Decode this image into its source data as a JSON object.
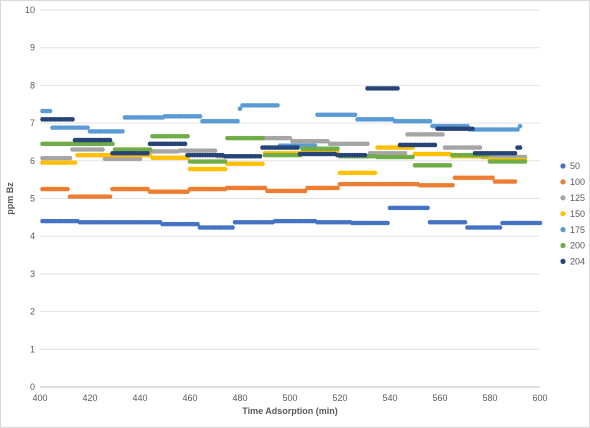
{
  "chart_data": {
    "type": "scatter",
    "title": "",
    "xlabel": "Time Adsorption (min)",
    "ylabel": "ppm Bz",
    "xlim": [
      400,
      600
    ],
    "ylim": [
      0,
      10
    ],
    "x_ticks": [
      400,
      420,
      440,
      460,
      480,
      500,
      520,
      540,
      560,
      580,
      600
    ],
    "y_ticks": [
      0,
      1,
      2,
      3,
      4,
      5,
      6,
      7,
      8,
      9,
      10
    ],
    "grid": "horizontal",
    "legend_position": "right",
    "series": [
      {
        "name": "50",
        "color": "#4472c4",
        "segments": [
          {
            "x0": 401,
            "x1": 415,
            "y": 4.4
          },
          {
            "x0": 416,
            "x1": 448,
            "y": 4.37
          },
          {
            "x0": 449,
            "x1": 463,
            "y": 4.32
          },
          {
            "x0": 464,
            "x1": 477,
            "y": 4.23
          },
          {
            "x0": 478,
            "x1": 493,
            "y": 4.37
          },
          {
            "x0": 494,
            "x1": 510,
            "y": 4.4
          },
          {
            "x0": 511,
            "x1": 524,
            "y": 4.37
          },
          {
            "x0": 525,
            "x1": 539,
            "y": 4.35
          },
          {
            "x0": 540,
            "x1": 555,
            "y": 4.75
          },
          {
            "x0": 556,
            "x1": 570,
            "y": 4.37
          },
          {
            "x0": 571,
            "x1": 584,
            "y": 4.23
          },
          {
            "x0": 585,
            "x1": 600,
            "y": 4.35
          }
        ]
      },
      {
        "name": "100",
        "color": "#ed7d31",
        "segments": [
          {
            "x0": 401,
            "x1": 411,
            "y": 5.25
          },
          {
            "x0": 412,
            "x1": 428,
            "y": 5.05
          },
          {
            "x0": 429,
            "x1": 443,
            "y": 5.25
          },
          {
            "x0": 444,
            "x1": 459,
            "y": 5.18
          },
          {
            "x0": 460,
            "x1": 474,
            "y": 5.25
          },
          {
            "x0": 475,
            "x1": 490,
            "y": 5.28
          },
          {
            "x0": 491,
            "x1": 506,
            "y": 5.2
          },
          {
            "x0": 507,
            "x1": 519,
            "y": 5.28
          },
          {
            "x0": 520,
            "x1": 535,
            "y": 5.38
          },
          {
            "x0": 536,
            "x1": 551,
            "y": 5.38
          },
          {
            "x0": 552,
            "x1": 565,
            "y": 5.35
          },
          {
            "x0": 566,
            "x1": 581,
            "y": 5.55
          },
          {
            "x0": 582,
            "x1": 590,
            "y": 5.45
          }
        ]
      },
      {
        "name": "125",
        "color": "#a5a5a5",
        "segments": [
          {
            "x0": 401,
            "x1": 412,
            "y": 6.07
          },
          {
            "x0": 413,
            "x1": 425,
            "y": 6.3
          },
          {
            "x0": 426,
            "x1": 440,
            "y": 6.05
          },
          {
            "x0": 441,
            "x1": 455,
            "y": 6.25
          },
          {
            "x0": 456,
            "x1": 470,
            "y": 6.27
          },
          {
            "x0": 471,
            "x1": 485,
            "y": 6.12
          },
          {
            "x0": 486,
            "x1": 500,
            "y": 6.6
          },
          {
            "x0": 501,
            "x1": 515,
            "y": 6.52
          },
          {
            "x0": 516,
            "x1": 531,
            "y": 6.45
          },
          {
            "x0": 532,
            "x1": 546,
            "y": 6.2
          },
          {
            "x0": 547,
            "x1": 561,
            "y": 6.7
          },
          {
            "x0": 562,
            "x1": 576,
            "y": 6.35
          },
          {
            "x0": 577,
            "x1": 594,
            "y": 6.1
          }
        ]
      },
      {
        "name": "150",
        "color": "#ffc000",
        "segments": [
          {
            "x0": 401,
            "x1": 414,
            "y": 5.95
          },
          {
            "x0": 415,
            "x1": 429,
            "y": 6.15
          },
          {
            "x0": 430,
            "x1": 444,
            "y": 6.15
          },
          {
            "x0": 445,
            "x1": 459,
            "y": 6.08
          },
          {
            "x0": 460,
            "x1": 474,
            "y": 5.78
          },
          {
            "x0": 475,
            "x1": 489,
            "y": 5.92
          },
          {
            "x0": 490,
            "x1": 504,
            "y": 6.2
          },
          {
            "x0": 505,
            "x1": 519,
            "y": 6.22
          },
          {
            "x0": 520,
            "x1": 534,
            "y": 5.68
          },
          {
            "x0": 535,
            "x1": 549,
            "y": 6.35
          },
          {
            "x0": 550,
            "x1": 564,
            "y": 6.18
          },
          {
            "x0": 565,
            "x1": 579,
            "y": 6.12
          },
          {
            "x0": 580,
            "x1": 594,
            "y": 6.02
          }
        ]
      },
      {
        "name": "175",
        "color": "#5b9bd5",
        "segments": [
          {
            "x0": 401,
            "x1": 404,
            "y": 7.32
          },
          {
            "x0": 405,
            "x1": 419,
            "y": 6.88
          },
          {
            "x0": 420,
            "x1": 433,
            "y": 6.78
          },
          {
            "x0": 434,
            "x1": 449,
            "y": 7.15
          },
          {
            "x0": 450,
            "x1": 464,
            "y": 7.18
          },
          {
            "x0": 465,
            "x1": 479,
            "y": 7.05
          },
          {
            "x0": 480,
            "x1": 480,
            "y": 7.38
          },
          {
            "x0": 481,
            "x1": 495,
            "y": 7.47
          },
          {
            "x0": 496,
            "x1": 510,
            "y": 6.4
          },
          {
            "x0": 511,
            "x1": 526,
            "y": 7.22
          },
          {
            "x0": 527,
            "x1": 541,
            "y": 7.1
          },
          {
            "x0": 542,
            "x1": 556,
            "y": 7.05
          },
          {
            "x0": 557,
            "x1": 571,
            "y": 6.92
          },
          {
            "x0": 572,
            "x1": 591,
            "y": 6.83
          },
          {
            "x0": 592,
            "x1": 592,
            "y": 6.92
          }
        ]
      },
      {
        "name": "200",
        "color": "#70ad47",
        "segments": [
          {
            "x0": 401,
            "x1": 414,
            "y": 6.45
          },
          {
            "x0": 415,
            "x1": 429,
            "y": 6.45
          },
          {
            "x0": 430,
            "x1": 444,
            "y": 6.3
          },
          {
            "x0": 445,
            "x1": 459,
            "y": 6.65
          },
          {
            "x0": 460,
            "x1": 474,
            "y": 5.98
          },
          {
            "x0": 475,
            "x1": 489,
            "y": 6.6
          },
          {
            "x0": 490,
            "x1": 504,
            "y": 6.15
          },
          {
            "x0": 505,
            "x1": 519,
            "y": 6.32
          },
          {
            "x0": 520,
            "x1": 534,
            "y": 6.12
          },
          {
            "x0": 535,
            "x1": 549,
            "y": 6.1
          },
          {
            "x0": 550,
            "x1": 564,
            "y": 5.88
          },
          {
            "x0": 565,
            "x1": 579,
            "y": 6.15
          },
          {
            "x0": 580,
            "x1": 594,
            "y": 5.98
          }
        ]
      },
      {
        "name": "204",
        "color": "#264478",
        "segments": [
          {
            "x0": 401,
            "x1": 413,
            "y": 7.1
          },
          {
            "x0": 414,
            "x1": 428,
            "y": 6.55
          },
          {
            "x0": 429,
            "x1": 443,
            "y": 6.2
          },
          {
            "x0": 444,
            "x1": 458,
            "y": 6.45
          },
          {
            "x0": 459,
            "x1": 473,
            "y": 6.15
          },
          {
            "x0": 474,
            "x1": 488,
            "y": 6.12
          },
          {
            "x0": 489,
            "x1": 503,
            "y": 6.35
          },
          {
            "x0": 504,
            "x1": 518,
            "y": 6.18
          },
          {
            "x0": 519,
            "x1": 530,
            "y": 6.15
          },
          {
            "x0": 531,
            "x1": 543,
            "y": 7.92
          },
          {
            "x0": 544,
            "x1": 558,
            "y": 6.42
          },
          {
            "x0": 559,
            "x1": 573,
            "y": 6.85
          },
          {
            "x0": 574,
            "x1": 590,
            "y": 6.2
          },
          {
            "x0": 591,
            "x1": 592,
            "y": 6.35
          }
        ]
      }
    ]
  }
}
